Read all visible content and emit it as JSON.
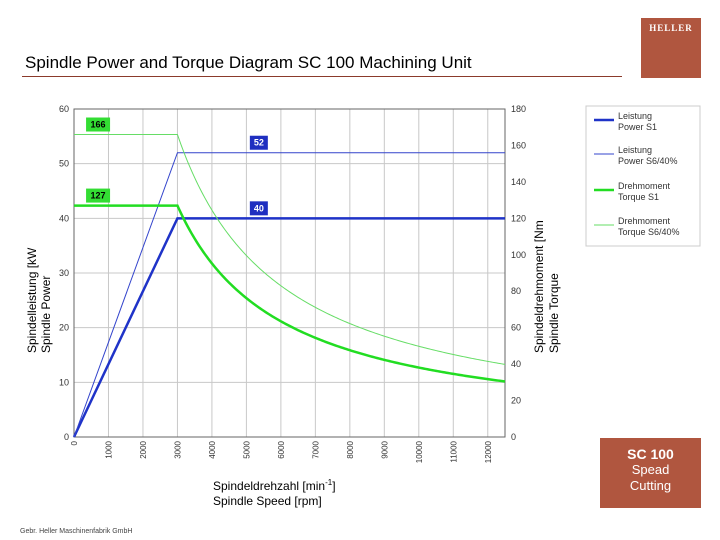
{
  "slide": {
    "title": "Spindle Power and Torque Diagram SC 100 Machining Unit",
    "logo_text": "HELLER",
    "info_title": "SC 100",
    "info_line1": "Spead",
    "info_line2": "Cutting",
    "footer": "Gebr. Heller Maschinenfabrik GmbH"
  },
  "colors": {
    "accent": "#b0563f",
    "power_dark": "#1f33c8",
    "power_light": "#3344cc",
    "torque_dark": "#22dd22",
    "torque_light": "#66dd66",
    "green_tag": "#33dd33",
    "blue_tag": "#1f2fc0"
  },
  "chart_data": {
    "type": "line",
    "xlabel_de": "Spindeldrehzahl [min",
    "xlabel_sup": "-1",
    "xlabel_close": "]",
    "xlabel_en": "Spindle Speed [rpm]",
    "ylabel_left_de": "Spindelleistung [kW",
    "ylabel_left_en": "Spindle Power",
    "ylabel_right_de": "Spindeldrehmoment [Nm",
    "ylabel_right_en": "Spindle Torque",
    "x_ticks": [
      0,
      1000,
      2000,
      3000,
      4000,
      5000,
      6000,
      7000,
      8000,
      9000,
      10000,
      11000,
      12000
    ],
    "left_ticks": [
      0,
      10,
      20,
      30,
      40,
      50,
      60
    ],
    "right_ticks": [
      0,
      20,
      40,
      60,
      80,
      100,
      120,
      140,
      160,
      180
    ],
    "xlim": [
      0,
      12500
    ],
    "left_ylim": [
      0,
      60
    ],
    "right_ylim": [
      0,
      180
    ],
    "series": [
      {
        "name": "Leistung Power S1",
        "legend1": "Leistung",
        "legend2": "Power S1",
        "axis": "left",
        "style": "power_s1",
        "x": [
          0,
          3000,
          12500
        ],
        "y": [
          0,
          40,
          40
        ]
      },
      {
        "name": "Leistung Power S6/40%",
        "legend1": "Leistung",
        "legend2": "Power S6/40%",
        "axis": "left",
        "style": "power_s6",
        "x": [
          0,
          3000,
          12500
        ],
        "y": [
          0,
          52,
          52
        ]
      },
      {
        "name": "Drehmoment Torque S1",
        "legend1": "Drehmoment",
        "legend2": "Torque S1",
        "axis": "right",
        "style": "torque_s1",
        "x": [
          0,
          3000,
          4000,
          5000,
          6000,
          7000,
          8000,
          9000,
          10000,
          11000,
          12000,
          12500
        ],
        "y": [
          127,
          127,
          95.5,
          76.4,
          63.7,
          54.6,
          47.7,
          42.4,
          38.2,
          34.7,
          31.8,
          30.6
        ]
      },
      {
        "name": "Drehmoment Torque S6/40%",
        "legend1": "Drehmoment",
        "legend2": "Torque S6/40%",
        "axis": "right",
        "style": "torque_s6",
        "x": [
          0,
          3000,
          4000,
          5000,
          6000,
          7000,
          8000,
          9000,
          10000,
          11000,
          12000,
          12500
        ],
        "y": [
          166,
          166,
          124,
          99.3,
          82.8,
          71.0,
          62.1,
          55.2,
          49.7,
          45.2,
          41.4,
          39.7
        ]
      }
    ],
    "annotations": [
      {
        "label": "166",
        "kind": "green",
        "value": 166,
        "axis": "right",
        "x": 350
      },
      {
        "label": "127",
        "kind": "green",
        "value": 127,
        "axis": "right",
        "x": 350
      },
      {
        "label": "52",
        "kind": "blue",
        "value": 52,
        "axis": "left",
        "x": 5100
      },
      {
        "label": "40",
        "kind": "blue",
        "value": 40,
        "axis": "left",
        "x": 5100
      }
    ]
  }
}
